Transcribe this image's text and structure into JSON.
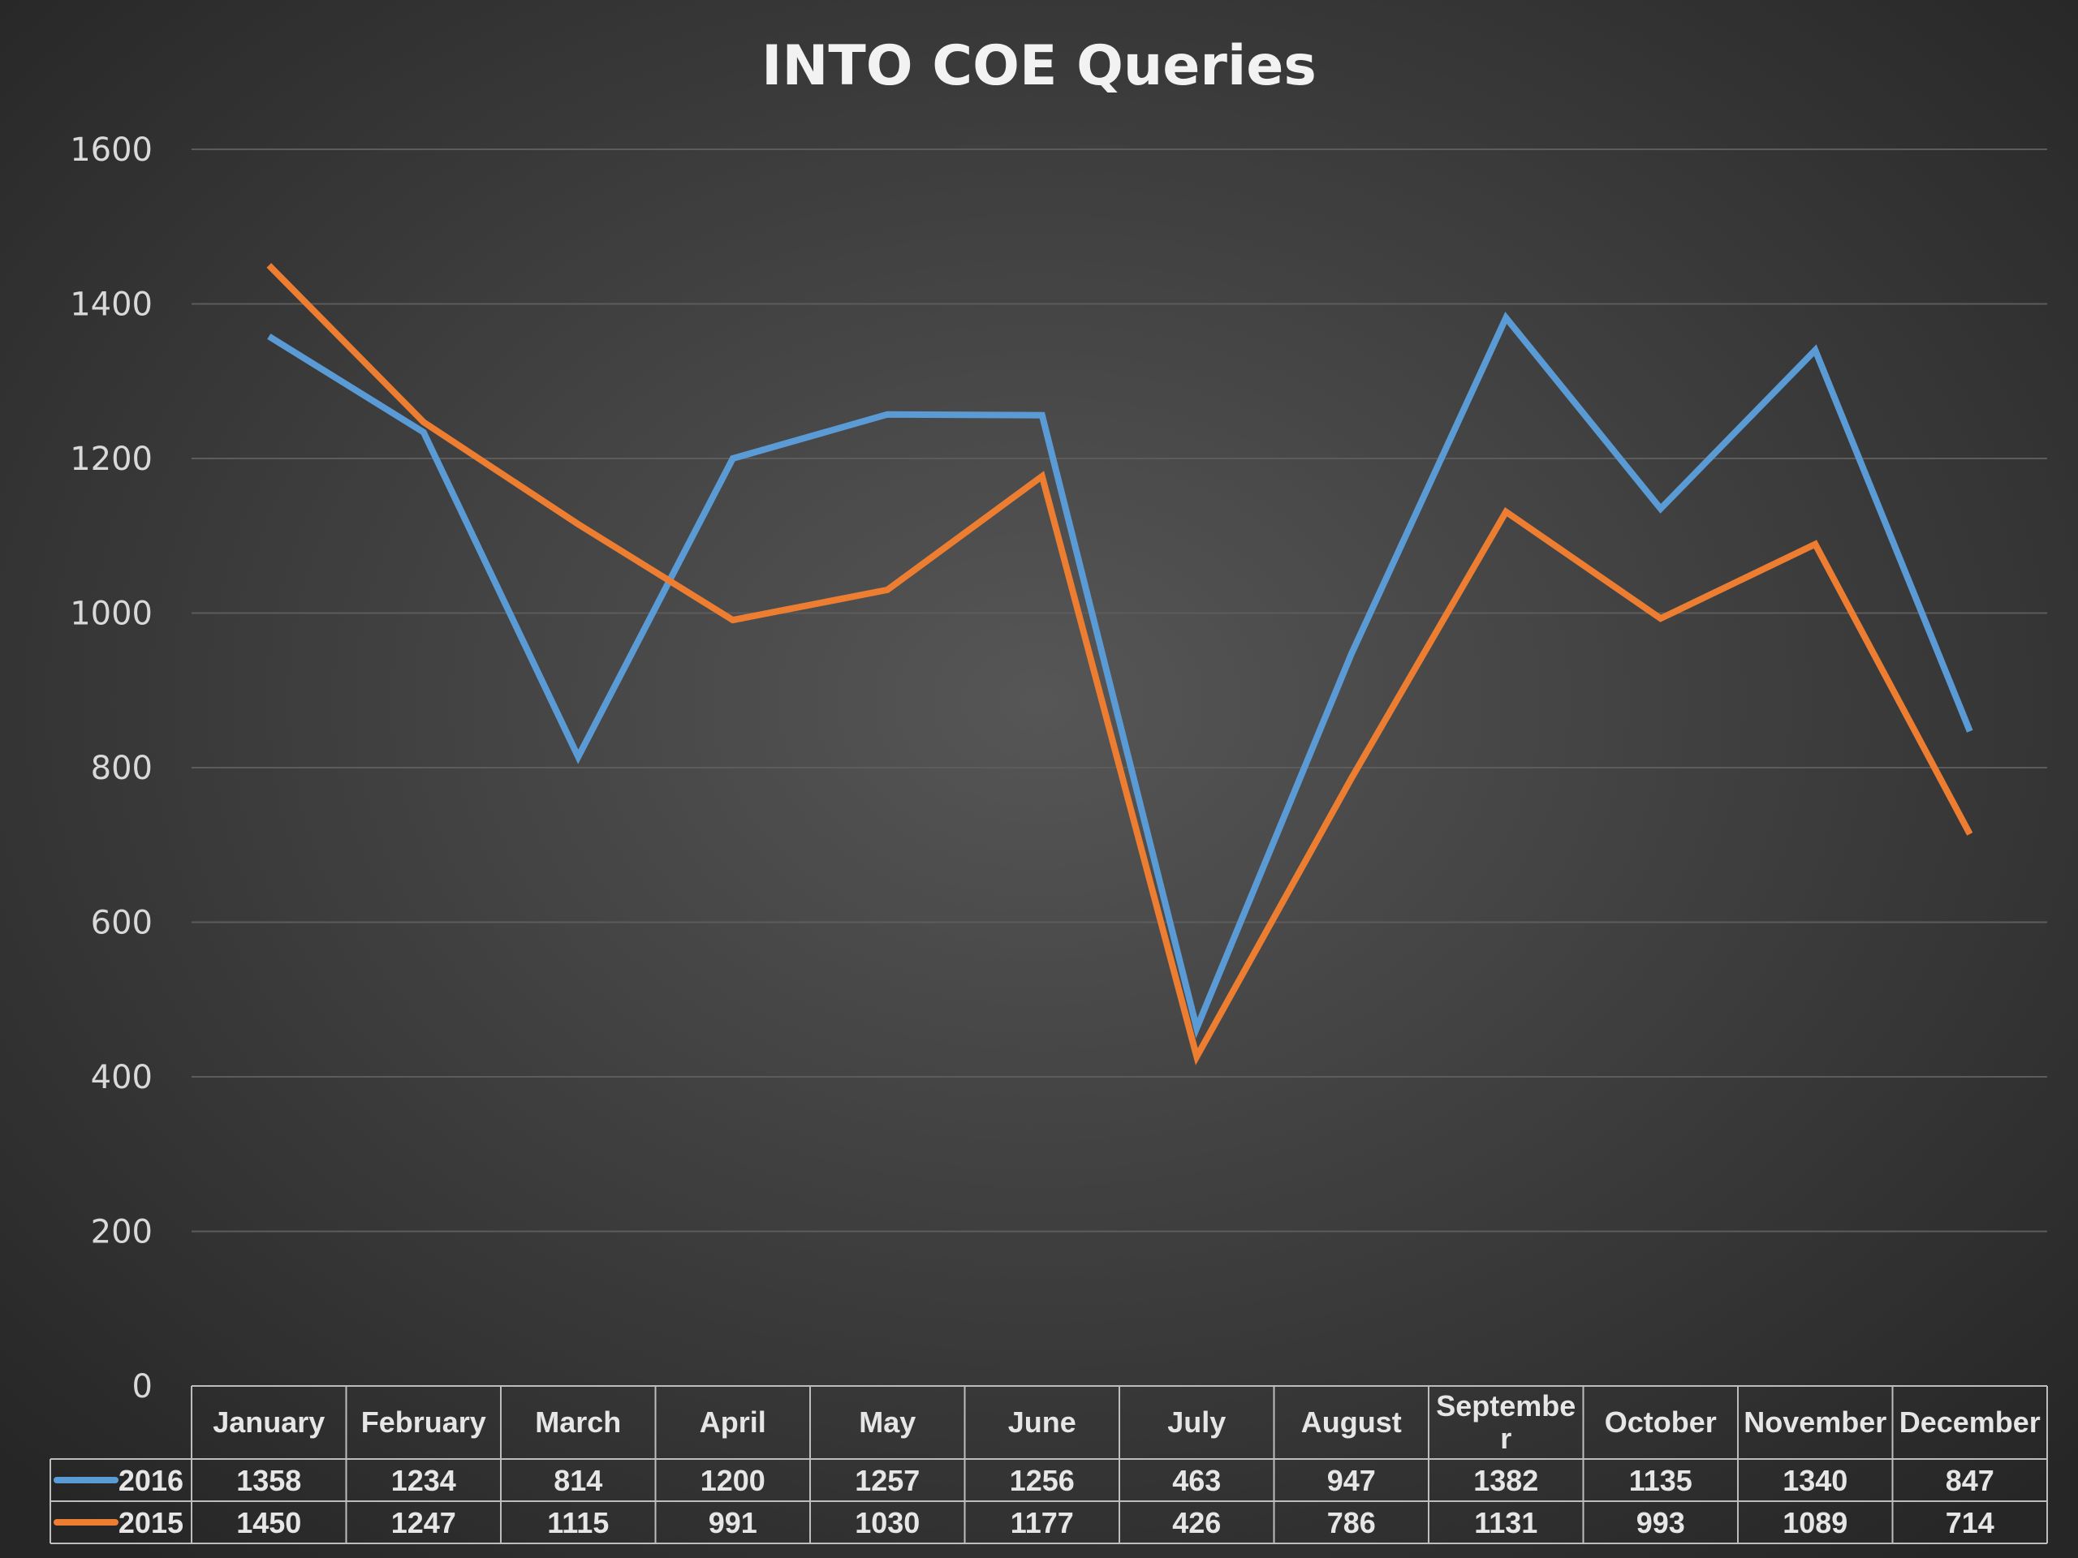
{
  "chart_data": {
    "type": "line",
    "title": "INTO COE Queries",
    "xlabel": "",
    "ylabel": "",
    "ylim": [
      0,
      1600
    ],
    "yticks": [
      0,
      200,
      400,
      600,
      800,
      1000,
      1200,
      1400,
      1600
    ],
    "grid": true,
    "legend": "data-table",
    "categories": [
      "January",
      "February",
      "March",
      "April",
      "May",
      "June",
      "July",
      "August",
      "Septembe r",
      "October",
      "November",
      "December"
    ],
    "series": [
      {
        "name": "2016",
        "color": "#5b9bd5",
        "values": [
          1358,
          1234,
          814,
          1200,
          1257,
          1256,
          463,
          947,
          1382,
          1135,
          1340,
          847
        ]
      },
      {
        "name": "2015",
        "color": "#ed7d31",
        "values": [
          1450,
          1247,
          1115,
          991,
          1030,
          1177,
          426,
          786,
          1131,
          993,
          1089,
          714
        ]
      }
    ]
  }
}
